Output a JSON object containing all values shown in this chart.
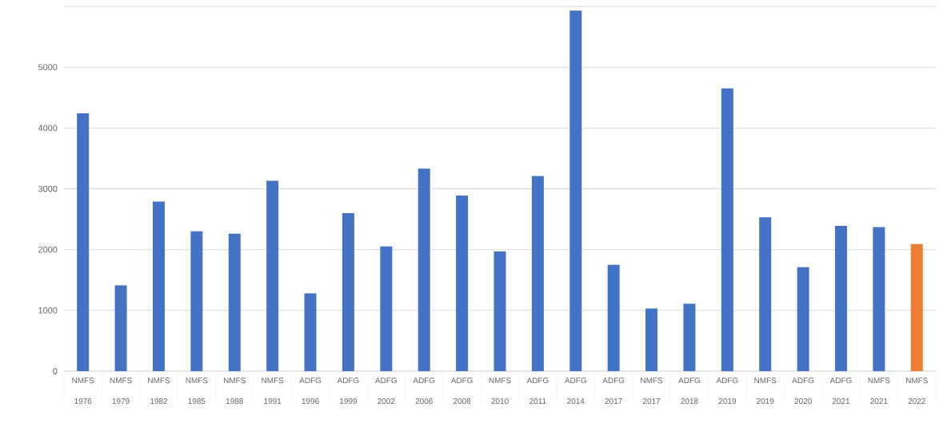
{
  "chart_data": {
    "type": "bar",
    "categories": [
      "NMFS 1976",
      "NMFS 1979",
      "NMFS 1982",
      "NMFS 1985",
      "NMFS 1988",
      "NMFS 1991",
      "ADFG 1996",
      "ADFG 1999",
      "ADFG 2002",
      "ADFG 2006",
      "ADFG 2008",
      "NMFS 2010",
      "ADFG 2011",
      "ADFG 2014",
      "ADFG 2017",
      "NMFS 2017",
      "ADFG 2018",
      "ADFG 2019",
      "NMFS 2019",
      "ADFG 2020",
      "ADFG 2021",
      "NMFS 2021",
      "NMFS 2022"
    ],
    "values": [
      4240,
      1410,
      2790,
      2300,
      2260,
      3130,
      1280,
      2600,
      2050,
      3330,
      2890,
      1970,
      3210,
      5930,
      1750,
      1030,
      1110,
      4650,
      2530,
      1710,
      2390,
      2370,
      2090
    ],
    "colors": [
      "#4472c4",
      "#4472c4",
      "#4472c4",
      "#4472c4",
      "#4472c4",
      "#4472c4",
      "#4472c4",
      "#4472c4",
      "#4472c4",
      "#4472c4",
      "#4472c4",
      "#4472c4",
      "#4472c4",
      "#4472c4",
      "#4472c4",
      "#4472c4",
      "#4472c4",
      "#4472c4",
      "#4472c4",
      "#4472c4",
      "#4472c4",
      "#4472c4",
      "#ed7d31"
    ],
    "ylim": [
      0,
      6000
    ],
    "yticks": [
      0,
      1000,
      2000,
      3000,
      4000,
      5000,
      {
        "value": 6000,
        "label": null
      }
    ],
    "grid": "y"
  }
}
